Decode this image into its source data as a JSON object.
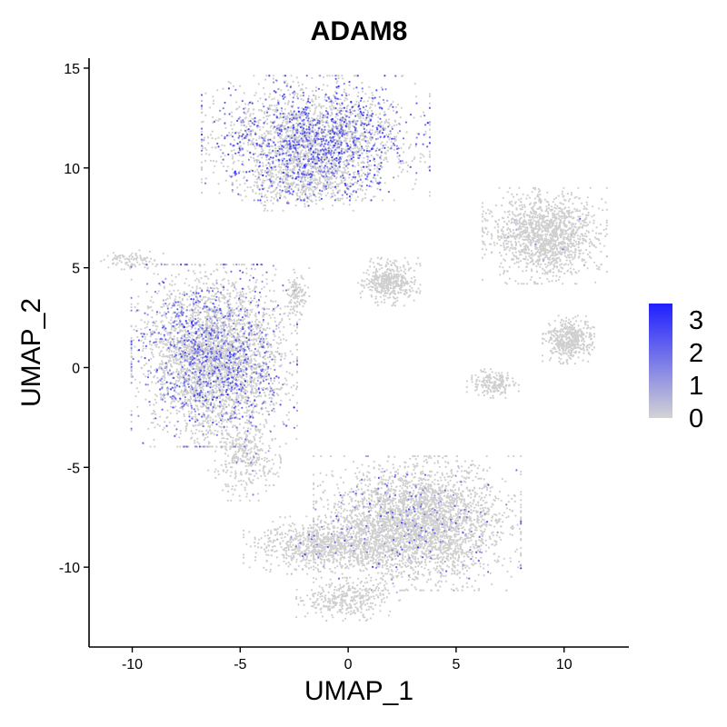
{
  "chart_data": {
    "type": "scatter",
    "title": "ADAM8",
    "xlabel": "UMAP_1",
    "ylabel": "UMAP_2",
    "xlim": [
      -12,
      13
    ],
    "ylim": [
      -14,
      15.5
    ],
    "x_ticks": [
      -10,
      -5,
      0,
      5,
      10
    ],
    "y_ticks": [
      -10,
      -5,
      0,
      5,
      10,
      15
    ],
    "grid": false,
    "legend": {
      "type": "colorbar",
      "placement": "right",
      "labels": [
        3,
        2,
        1,
        0
      ],
      "range": [
        0,
        3.5
      ],
      "low_color": "#d3d3d3",
      "high_color": "#1f1fff"
    },
    "point_color_default": "#cfcfcf",
    "clusters": [
      {
        "name": "top",
        "center": [
          -1.5,
          11.5
        ],
        "spread": [
          2.2,
          1.3
        ],
        "count": 2600,
        "expression_rate": 0.32,
        "mean_expression": 1.6
      },
      {
        "name": "top-lower",
        "center": [
          -2.0,
          9.3
        ],
        "spread": [
          1.4,
          0.6
        ],
        "count": 500,
        "expression_rate": 0.18,
        "mean_expression": 1.3
      },
      {
        "name": "left-large",
        "center": [
          -6.2,
          0.6
        ],
        "spread": [
          1.6,
          1.9
        ],
        "count": 3800,
        "expression_rate": 0.24,
        "mean_expression": 1.4
      },
      {
        "name": "left-lower-tail",
        "center": [
          -4.8,
          -4.5
        ],
        "spread": [
          0.7,
          0.9
        ],
        "count": 350,
        "expression_rate": 0.04,
        "mean_expression": 0.8
      },
      {
        "name": "bottom-large",
        "center": [
          3.2,
          -7.8
        ],
        "spread": [
          2.0,
          1.4
        ],
        "count": 3400,
        "expression_rate": 0.05,
        "mean_expression": 1.2
      },
      {
        "name": "bottom-left-arm",
        "center": [
          -1.0,
          -8.9
        ],
        "spread": [
          1.6,
          0.6
        ],
        "count": 900,
        "expression_rate": 0.03,
        "mean_expression": 1.0
      },
      {
        "name": "bottom-tail",
        "center": [
          0.0,
          -11.6
        ],
        "spread": [
          1.0,
          0.45
        ],
        "count": 350,
        "expression_rate": 0.01,
        "mean_expression": 0.8
      },
      {
        "name": "right-top",
        "center": [
          9.1,
          6.6
        ],
        "spread": [
          1.2,
          1.0
        ],
        "count": 1400,
        "expression_rate": 0.01,
        "mean_expression": 0.8
      },
      {
        "name": "right-middle",
        "center": [
          10.2,
          1.4
        ],
        "spread": [
          0.5,
          0.5
        ],
        "count": 450,
        "expression_rate": 0.0,
        "mean_expression": 0.5
      },
      {
        "name": "right-lower",
        "center": [
          6.7,
          -0.8
        ],
        "spread": [
          0.5,
          0.3
        ],
        "count": 180,
        "expression_rate": 0.0,
        "mean_expression": 0.5
      },
      {
        "name": "center-small",
        "center": [
          1.9,
          4.3
        ],
        "spread": [
          0.6,
          0.5
        ],
        "count": 420,
        "expression_rate": 0.0,
        "mean_expression": 0.5
      },
      {
        "name": "center-tiny",
        "center": [
          -2.4,
          3.6
        ],
        "spread": [
          0.25,
          0.6
        ],
        "count": 120,
        "expression_rate": 0.02,
        "mean_expression": 0.8
      },
      {
        "name": "far-left-streak",
        "center": [
          -10.0,
          5.4
        ],
        "spread": [
          0.6,
          0.2
        ],
        "count": 90,
        "expression_rate": 0.0,
        "mean_expression": 0.5
      }
    ]
  }
}
